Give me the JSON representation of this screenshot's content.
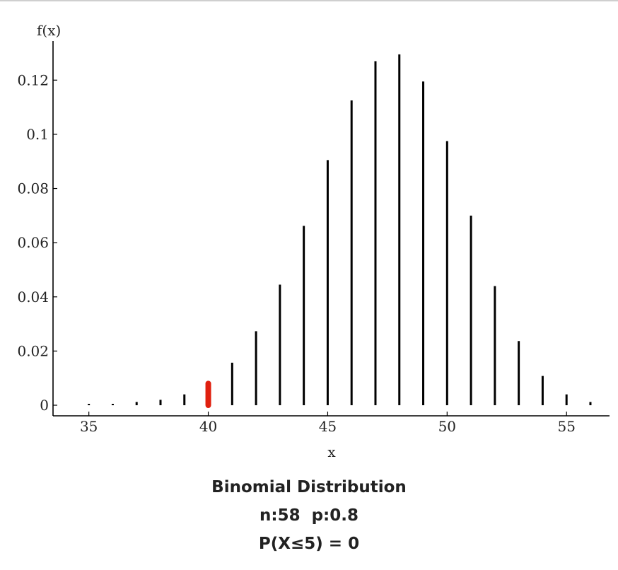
{
  "chart_data": {
    "type": "bar",
    "x": [
      35,
      36,
      37,
      38,
      39,
      40,
      41,
      42,
      43,
      44,
      45,
      46,
      47,
      48,
      49,
      50,
      51,
      52,
      53,
      54,
      55,
      56
    ],
    "values": [
      0.0002,
      0.0005,
      0.0012,
      0.002,
      0.004,
      0.008,
      0.0157,
      0.0273,
      0.0445,
      0.0662,
      0.0905,
      0.1125,
      0.127,
      0.1295,
      0.1195,
      0.0975,
      0.07,
      0.044,
      0.0237,
      0.0108,
      0.004,
      0.0012
    ],
    "highlight_x": 40,
    "highlight_color": "#e0200f",
    "bar_color": "#000000",
    "xlabel": "x",
    "ylabel": "f(x)",
    "xlim": [
      33.5,
      56.8
    ],
    "ylim": [
      0,
      0.13
    ],
    "x_ticks": [
      35,
      40,
      45,
      50,
      55
    ],
    "y_ticks": [
      0,
      0.02,
      0.04,
      0.06,
      0.08,
      0.1,
      0.12
    ],
    "y_tick_labels": [
      "0",
      "0.02",
      "0.04",
      "0.06",
      "0.08",
      "0.1",
      "0.12"
    ],
    "grid": false,
    "legend": "none"
  },
  "caption": {
    "title": "Binomial Distribution",
    "params": "n:58  p:0.8",
    "probability": "P(X≤5) = 0"
  }
}
